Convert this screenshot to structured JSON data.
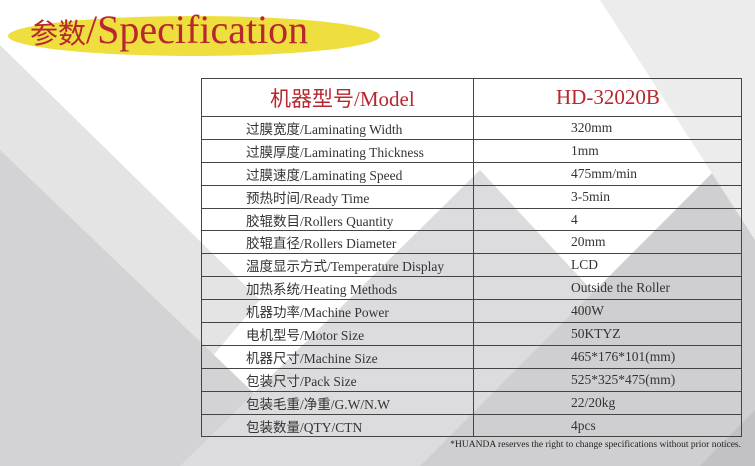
{
  "title": {
    "cn": "参数",
    "slash": "/",
    "en": "Specification"
  },
  "colors": {
    "accent": "#b8262e",
    "highlight": "#eedf3f"
  },
  "table": {
    "header": {
      "label": "机器型号/Model",
      "value": "HD-32020B"
    },
    "rows": [
      {
        "label": "过膜宽度/Laminating Width",
        "value": "320mm"
      },
      {
        "label": "过膜厚度/Laminating Thickness",
        "value": "1mm"
      },
      {
        "label": "过膜速度/Laminating Speed",
        "value": "475mm/min"
      },
      {
        "label": "预热时间/Ready Time",
        "value": "3-5min"
      },
      {
        "label": "胶辊数目/Rollers Quantity",
        "value": "4"
      },
      {
        "label": "胶辊直径/Rollers Diameter",
        "value": "20mm"
      },
      {
        "label": "温度显示方式/Temperature Display",
        "value": "LCD"
      },
      {
        "label": "加热系统/Heating Methods",
        "value": "Outside the Roller"
      },
      {
        "label": "机器功率/Machine Power",
        "value": "400W"
      },
      {
        "label": "电机型号/Motor Size",
        "value": "50KTYZ"
      },
      {
        "label": "机器尺寸/Machine Size",
        "value": "465*176*101(mm)"
      },
      {
        "label": "包装尺寸/Pack Size",
        "value": "525*325*475(mm)"
      },
      {
        "label": "包装毛重/净重/G.W/N.W",
        "value": "22/20kg"
      },
      {
        "label": "包装数量/QTY/CTN",
        "value": "4pcs"
      }
    ]
  },
  "note": "*HUANDA reserves the right to change specifications without prior notices."
}
